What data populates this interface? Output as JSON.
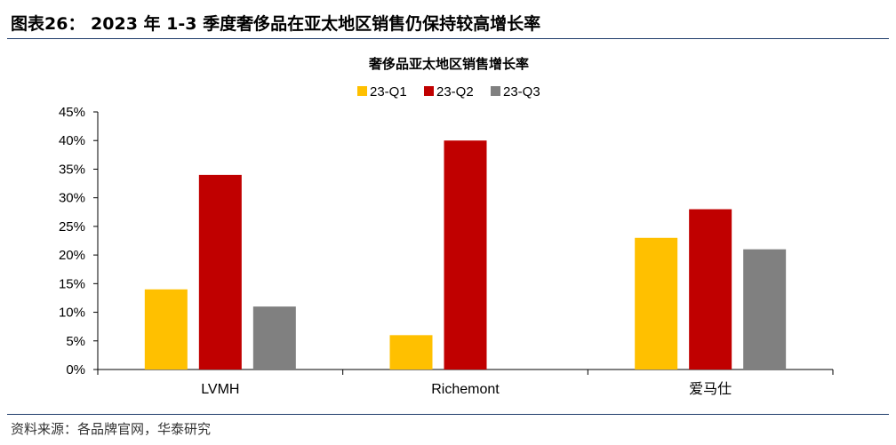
{
  "figure": {
    "caption": "图表26： 2023 年 1-3 季度奢侈品在亚太地区销售仍保持较高增长率",
    "source": "资料来源：各品牌官网，华泰研究"
  },
  "chart_data": {
    "type": "bar",
    "title": "奢侈品亚太地区销售增长率",
    "xlabel": "",
    "ylabel": "",
    "categories": [
      "LVMH",
      "Richemont",
      "爱马仕"
    ],
    "series": [
      {
        "name": "23-Q1",
        "color": "#FFC000",
        "values": [
          14,
          6,
          23
        ]
      },
      {
        "name": "23-Q2",
        "color": "#C00000",
        "values": [
          34,
          40,
          28
        ]
      },
      {
        "name": "23-Q3",
        "color": "#808080",
        "values": [
          11,
          null,
          21
        ]
      }
    ],
    "ylim": [
      0,
      45
    ],
    "yticks": [
      "0%",
      "5%",
      "10%",
      "15%",
      "20%",
      "25%",
      "30%",
      "35%",
      "40%",
      "45%"
    ],
    "ytick_values": [
      0,
      5,
      10,
      15,
      20,
      25,
      30,
      35,
      40,
      45
    ],
    "grid": false,
    "legend_position": "top"
  }
}
